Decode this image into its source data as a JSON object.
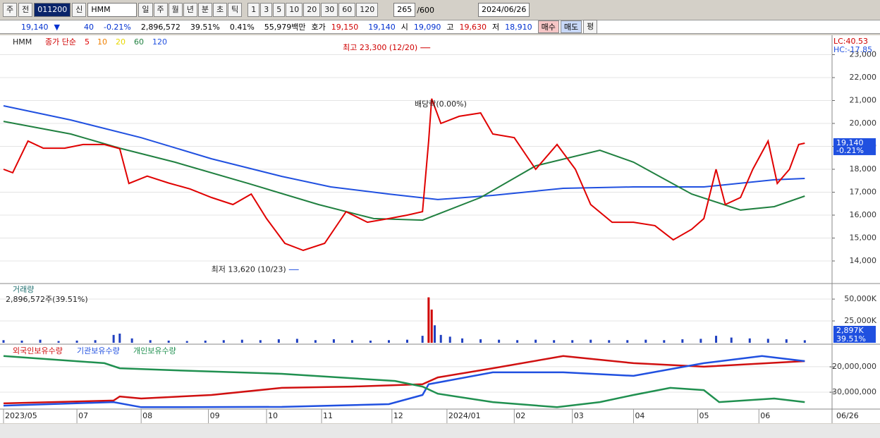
{
  "toolbar": {
    "mode": "주",
    "prev": "전",
    "code": "011200",
    "new": "신",
    "name": "HMM",
    "periods": [
      "일",
      "주",
      "월",
      "년",
      "분",
      "초",
      "틱"
    ],
    "intervals": [
      "1",
      "3",
      "5",
      "10",
      "20",
      "30",
      "60",
      "120"
    ],
    "count": "265",
    "total": "/600",
    "date": "2024/06/26"
  },
  "quote": {
    "price": "19,140",
    "direction": "▼",
    "change": "40",
    "change_rate": "-0.21%",
    "volume": "2,896,572",
    "volume_ratio": "39.51%",
    "turnover_rate": "0.41%",
    "amount": "55,979백만",
    "ask_label": "호가",
    "ask": "19,150",
    "bid": "19,140",
    "open_label": "시",
    "open": "19,090",
    "high_label": "고",
    "high": "19,630",
    "low_label": "저",
    "low": "18,910",
    "buy": "매수",
    "sell": "매도",
    "avg": "평"
  },
  "x_axis": {
    "xlim": [
      0,
      264
    ],
    "xticks": [
      {
        "value": 0,
        "label": "2023/05"
      },
      {
        "value": 24,
        "label": "07"
      },
      {
        "value": 45,
        "label": "08"
      },
      {
        "value": 67,
        "label": "09"
      },
      {
        "value": 86,
        "label": "10"
      },
      {
        "value": 104,
        "label": "11"
      },
      {
        "value": 127,
        "label": "12"
      },
      {
        "value": 145,
        "label": "2024/01"
      },
      {
        "value": 167,
        "label": "02"
      },
      {
        "value": 186,
        "label": "03"
      },
      {
        "value": 206,
        "label": "04"
      },
      {
        "value": 227,
        "label": "05"
      },
      {
        "value": 247,
        "label": "06"
      }
    ],
    "last_date": "06/26"
  },
  "chart_data": [
    {
      "type": "line",
      "legend_name": "HMM",
      "ma_title": "종가 단순",
      "ma_labels": [
        {
          "text": "5",
          "color": "#e00000"
        },
        {
          "text": "10",
          "color": "#f08000"
        },
        {
          "text": "20",
          "color": "#e8d800"
        },
        {
          "text": "60",
          "color": "#208040"
        },
        {
          "text": "120",
          "color": "#2050e0"
        }
      ],
      "ylim": [
        13015,
        23785
      ],
      "yticks": [
        {
          "value": 14000,
          "label": "14,000"
        },
        {
          "value": 15000,
          "label": "15,000"
        },
        {
          "value": 16000,
          "label": "16,000"
        },
        {
          "value": 17000,
          "label": "17,000"
        },
        {
          "value": 18000,
          "label": "18,000"
        },
        {
          "value": 19000,
          "label": "19,000"
        },
        {
          "value": 20000,
          "label": "20,000"
        },
        {
          "value": 21000,
          "label": "21,000"
        },
        {
          "value": 22000,
          "label": "22,000"
        },
        {
          "value": 23000,
          "label": "23,000"
        }
      ],
      "series": [
        {
          "color": "#2050e0",
          "x": [
            0,
            22,
            45,
            68,
            91,
            107,
            126,
            142,
            160,
            183,
            206,
            229,
            252,
            262
          ],
          "values": [
            20770,
            20150,
            19380,
            18460,
            17690,
            17230,
            16920,
            16680,
            16860,
            17170,
            17230,
            17230,
            17540,
            17600
          ]
        },
        {
          "color": "#208040",
          "x": [
            0,
            22,
            38,
            56,
            80,
            103,
            121,
            137,
            156,
            174,
            195,
            206,
            225,
            241,
            252,
            262
          ],
          "values": [
            20090,
            19540,
            18920,
            18310,
            17380,
            16460,
            15850,
            15780,
            16770,
            18150,
            18830,
            18310,
            16920,
            16220,
            16370,
            16830
          ]
        },
        {
          "color": "#e00000",
          "x": [
            0,
            3,
            8,
            13,
            20,
            26,
            33,
            38,
            41,
            47,
            54,
            61,
            68,
            75,
            81,
            86,
            92,
            98,
            105,
            112,
            119,
            126,
            132,
            137,
            139,
            140,
            143,
            149,
            156,
            160,
            167,
            174,
            181,
            187,
            192,
            199,
            206,
            213,
            219,
            225,
            229,
            233,
            236,
            241,
            245,
            250,
            253,
            257,
            260,
            262
          ],
          "values": [
            18000,
            17850,
            19230,
            18920,
            18920,
            19080,
            19080,
            18900,
            17380,
            17700,
            17400,
            17140,
            16770,
            16460,
            16920,
            15850,
            14770,
            14460,
            14770,
            16150,
            15690,
            15850,
            16000,
            16150,
            19230,
            21080,
            20000,
            20310,
            20460,
            19540,
            19380,
            18000,
            19080,
            18000,
            16460,
            15690,
            15690,
            15540,
            14920,
            15380,
            15850,
            18000,
            16460,
            16770,
            18000,
            19230,
            17380,
            18000,
            19080,
            19140
          ]
        }
      ],
      "annotations": [
        {
          "text": "최고 23,300 (12/20)",
          "x": 140,
          "value": 23300
        },
        {
          "text": "최저 13,620 (10/23)",
          "x": 97,
          "value": 13620
        }
      ],
      "dividend_note": "배당락(0.00%)",
      "lc": "LC:40.53",
      "hc": "HC:-17.85",
      "last_value": 19140,
      "last_label": "19,140",
      "last_change": "-0.21%"
    },
    {
      "type": "bar",
      "title": "거래량",
      "subtitle": "2,896,572주(39.51%)",
      "color": "#2040c0",
      "spike_color": "#d00000",
      "ylim": [
        0,
        67000
      ],
      "yticks": [
        {
          "value": 25000,
          "label": "25,000K"
        },
        {
          "value": 50000,
          "label": "50,000K"
        }
      ],
      "x": [
        0,
        6,
        12,
        18,
        24,
        30,
        36,
        38,
        42,
        48,
        54,
        60,
        66,
        72,
        78,
        84,
        90,
        96,
        102,
        108,
        114,
        120,
        126,
        132,
        137,
        139,
        140,
        141,
        143,
        146,
        150,
        156,
        162,
        168,
        174,
        180,
        186,
        192,
        198,
        204,
        210,
        216,
        222,
        228,
        233,
        238,
        244,
        250,
        256,
        262
      ],
      "values": [
        3000,
        2500,
        3500,
        2000,
        2500,
        3000,
        9000,
        10500,
        5000,
        3000,
        2500,
        2000,
        2500,
        3000,
        3500,
        3000,
        4000,
        4500,
        3000,
        4000,
        3000,
        2500,
        3000,
        3500,
        8000,
        52000,
        38000,
        20000,
        9000,
        7000,
        5000,
        4000,
        3500,
        3000,
        3500,
        3000,
        3000,
        3500,
        3000,
        3000,
        3500,
        3000,
        4000,
        4500,
        8000,
        6000,
        5000,
        4500,
        4000,
        2897
      ],
      "last_label": "2,897K",
      "last_ratio": "39.51%"
    },
    {
      "type": "line",
      "ylim": [
        -36100000,
        -11700000
      ],
      "yticks": [
        {
          "value": -30000000,
          "label": "-30,000,000"
        },
        {
          "value": -20000000,
          "label": "-20,000,000"
        }
      ],
      "series": [
        {
          "name": "외국인보유수량",
          "color": "#d01010",
          "x": [
            0,
            36,
            38,
            45,
            68,
            91,
            114,
            137,
            142,
            160,
            183,
            206,
            229,
            262
          ],
          "values": [
            -34400000,
            -33300000,
            -31700000,
            -32500000,
            -31100000,
            -28300000,
            -27800000,
            -26900000,
            -24200000,
            -20600000,
            -15800000,
            -18600000,
            -20000000,
            -17800000
          ]
        },
        {
          "name": "기관보유수량",
          "color": "#2050e0",
          "x": [
            0,
            36,
            45,
            91,
            126,
            137,
            139,
            160,
            183,
            206,
            229,
            248,
            262
          ],
          "values": [
            -35300000,
            -33900000,
            -35900000,
            -35800000,
            -34700000,
            -31100000,
            -26900000,
            -22200000,
            -22200000,
            -23600000,
            -18600000,
            -15800000,
            -17800000
          ]
        },
        {
          "name": "개인보유수량",
          "color": "#209050",
          "x": [
            0,
            33,
            38,
            56,
            91,
            128,
            137,
            142,
            160,
            181,
            195,
            206,
            218,
            229,
            234,
            252,
            262
          ],
          "values": [
            -15800000,
            -18600000,
            -20600000,
            -21400000,
            -22800000,
            -25600000,
            -27800000,
            -30600000,
            -33900000,
            -35900000,
            -33900000,
            -31100000,
            -28300000,
            -29200000,
            -33900000,
            -32500000,
            -33900000
          ]
        }
      ]
    }
  ]
}
